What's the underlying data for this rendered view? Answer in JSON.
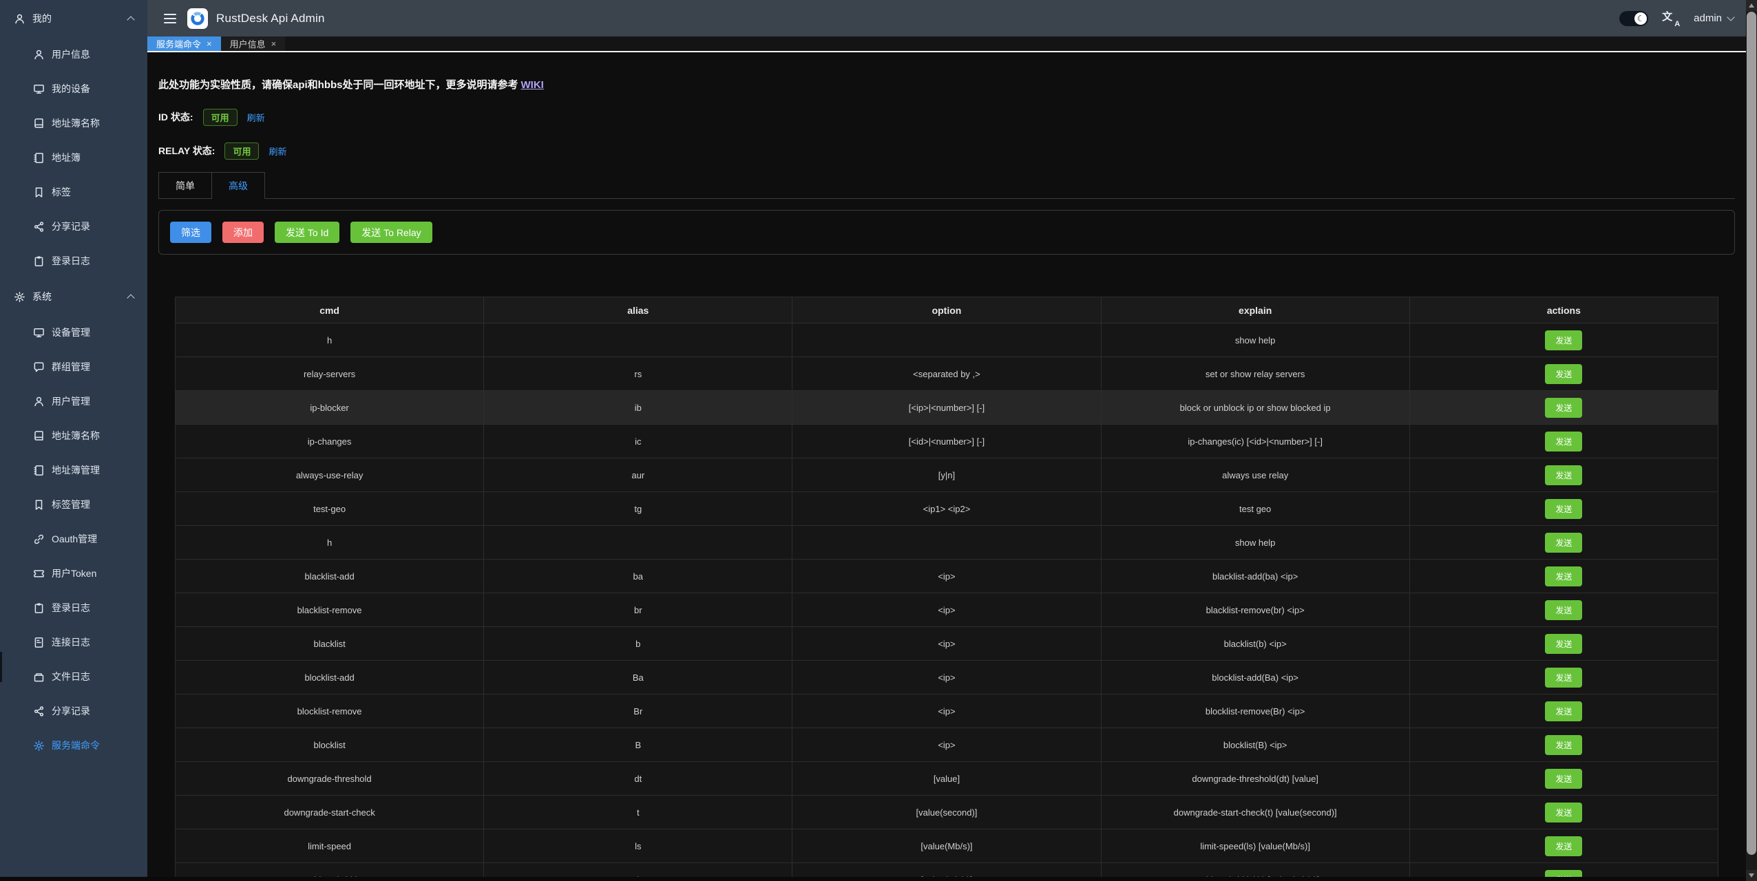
{
  "topbar": {
    "title": "RustDesk Api Admin",
    "user": "admin"
  },
  "tabbar": {
    "tabs": [
      {
        "label": "服务端命令",
        "close": "×",
        "active": true
      },
      {
        "label": "用户信息",
        "close": "×",
        "active": false
      }
    ]
  },
  "sidebar": {
    "sections": [
      {
        "label": "我的",
        "icon": "user",
        "items": [
          {
            "label": "用户信息",
            "icon": "user"
          },
          {
            "label": "我的设备",
            "icon": "monitor"
          },
          {
            "label": "地址簿名称",
            "icon": "book"
          },
          {
            "label": "地址簿",
            "icon": "notebook"
          },
          {
            "label": "标签",
            "icon": "bookmark"
          },
          {
            "label": "分享记录",
            "icon": "share"
          },
          {
            "label": "登录日志",
            "icon": "clipboard"
          }
        ]
      },
      {
        "label": "系统",
        "icon": "gear",
        "items": [
          {
            "label": "设备管理",
            "icon": "monitor"
          },
          {
            "label": "群组管理",
            "icon": "chat"
          },
          {
            "label": "用户管理",
            "icon": "user"
          },
          {
            "label": "地址簿名称",
            "icon": "book"
          },
          {
            "label": "地址簿管理",
            "icon": "notebook"
          },
          {
            "label": "标签管理",
            "icon": "bookmark"
          },
          {
            "label": "Oauth管理",
            "icon": "link"
          },
          {
            "label": "用户Token",
            "icon": "ticket"
          },
          {
            "label": "登录日志",
            "icon": "clipboard"
          },
          {
            "label": "连接日志",
            "icon": "file"
          },
          {
            "label": "文件日志",
            "icon": "archive"
          },
          {
            "label": "分享记录",
            "icon": "share"
          },
          {
            "label": "服务端命令",
            "icon": "gear",
            "active": true
          }
        ]
      }
    ]
  },
  "main": {
    "notice": {
      "text": "此处功能为实验性质，请确保api和hbbs处于同一回环地址下，更多说明请参考",
      "link": "WIKI"
    },
    "id_status": {
      "label": "ID 状态:",
      "badge": "可用",
      "refresh": "刷新"
    },
    "relay_status": {
      "label": "RELAY 状态:",
      "badge": "可用",
      "refresh": "刷新"
    },
    "tabs": [
      {
        "label": "简单",
        "active": false
      },
      {
        "label": "高级",
        "active": true
      }
    ],
    "toolbar": {
      "filter": "筛选",
      "add": "添加",
      "send_to_id": "发送 To Id",
      "send_to_relay": "发送 To Relay"
    },
    "table": {
      "headers": [
        "cmd",
        "alias",
        "option",
        "explain",
        "actions"
      ],
      "send_label": "发送",
      "highlighted_row_index": 2,
      "rows": [
        {
          "cmd": "h",
          "alias": "",
          "option": "",
          "explain": "show help"
        },
        {
          "cmd": "relay-servers",
          "alias": "rs",
          "option": "<separated by ,>",
          "explain": "set or show relay servers"
        },
        {
          "cmd": "ip-blocker",
          "alias": "ib",
          "option": "[<ip>|<number>] [-]",
          "explain": "block or unblock ip or show blocked ip"
        },
        {
          "cmd": "ip-changes",
          "alias": "ic",
          "option": "[<id>|<number>] [-]",
          "explain": "ip-changes(ic) [<id>|<number>] [-]"
        },
        {
          "cmd": "always-use-relay",
          "alias": "aur",
          "option": "[y|n]",
          "explain": "always use relay"
        },
        {
          "cmd": "test-geo",
          "alias": "tg",
          "option": "<ip1> <ip2>",
          "explain": "test geo"
        },
        {
          "cmd": "h",
          "alias": "",
          "option": "",
          "explain": "show help"
        },
        {
          "cmd": "blacklist-add",
          "alias": "ba",
          "option": "<ip>",
          "explain": "blacklist-add(ba) <ip>"
        },
        {
          "cmd": "blacklist-remove",
          "alias": "br",
          "option": "<ip>",
          "explain": "blacklist-remove(br) <ip>"
        },
        {
          "cmd": "blacklist",
          "alias": "b",
          "option": "<ip>",
          "explain": "blacklist(b) <ip>"
        },
        {
          "cmd": "blocklist-add",
          "alias": "Ba",
          "option": "<ip>",
          "explain": "blocklist-add(Ba) <ip>"
        },
        {
          "cmd": "blocklist-remove",
          "alias": "Br",
          "option": "<ip>",
          "explain": "blocklist-remove(Br) <ip>"
        },
        {
          "cmd": "blocklist",
          "alias": "B",
          "option": "<ip>",
          "explain": "blocklist(B) <ip>"
        },
        {
          "cmd": "downgrade-threshold",
          "alias": "dt",
          "option": "[value]",
          "explain": "downgrade-threshold(dt) [value]"
        },
        {
          "cmd": "downgrade-start-check",
          "alias": "t",
          "option": "[value(second)]",
          "explain": "downgrade-start-check(t) [value(second)]"
        },
        {
          "cmd": "limit-speed",
          "alias": "ls",
          "option": "[value(Mb/s)]",
          "explain": "limit-speed(ls) [value(Mb/s)]"
        },
        {
          "cmd": "total-bandwidth",
          "alias": "tb",
          "option": "[value(Mb/s)]",
          "explain": "total-bandwidth(tb) [value(Mb/s)]"
        }
      ]
    }
  },
  "colors": {
    "accent_blue": "#409eff",
    "success_green": "#67c23a",
    "danger_red": "#f56c6c",
    "active_tab_blue": "#4290e2",
    "visited_link_purple": "#b0a4f5",
    "sidebar_bg": "#2d3a4b",
    "topbar_bg": "#3b434d"
  }
}
